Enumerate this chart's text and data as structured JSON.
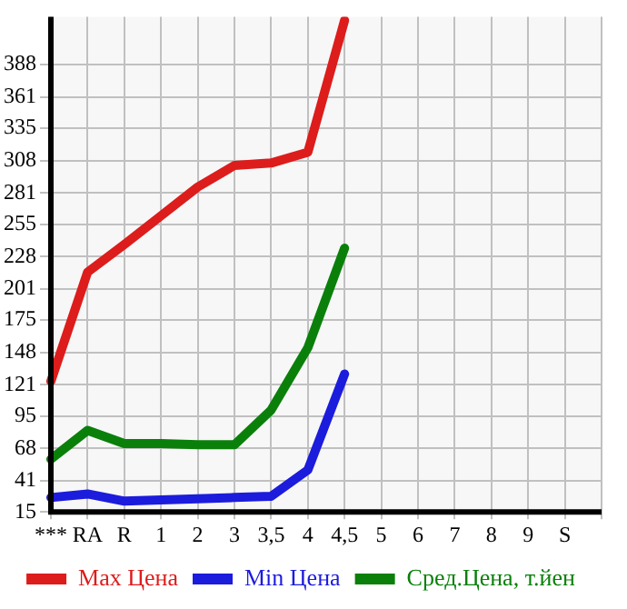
{
  "chart_data": {
    "type": "line",
    "categories": [
      "***",
      "RA",
      "R",
      "1",
      "2",
      "3",
      "3,5",
      "4",
      "4,5",
      "5",
      "6",
      "7",
      "8",
      "9",
      "S",
      null
    ],
    "series": [
      {
        "name": "Max Цена",
        "color": "#dd1c1c",
        "values": [
          124,
          215,
          238,
          262,
          286,
          304,
          306,
          315,
          425,
          null,
          null,
          null,
          null,
          null,
          null,
          null
        ]
      },
      {
        "name": "Min Цена",
        "color": "#1c1cdd",
        "values": [
          27,
          30,
          24,
          25,
          26,
          27,
          28,
          50,
          130,
          null,
          null,
          null,
          null,
          null,
          null,
          null
        ]
      },
      {
        "name": "Сред.Цена, т.йен",
        "color": "#0a800a",
        "values": [
          59,
          83,
          72,
          72,
          71,
          71,
          100,
          152,
          235,
          null,
          null,
          null,
          null,
          null,
          null,
          null
        ]
      }
    ],
    "ylim": [
      15,
      428
    ],
    "yticks": [
      15,
      41,
      68,
      95,
      121,
      148,
      175,
      201,
      228,
      255,
      281,
      308,
      335,
      361,
      388
    ],
    "grid": true,
    "legend": "bottom",
    "marker": "none",
    "line_style": "solid"
  }
}
